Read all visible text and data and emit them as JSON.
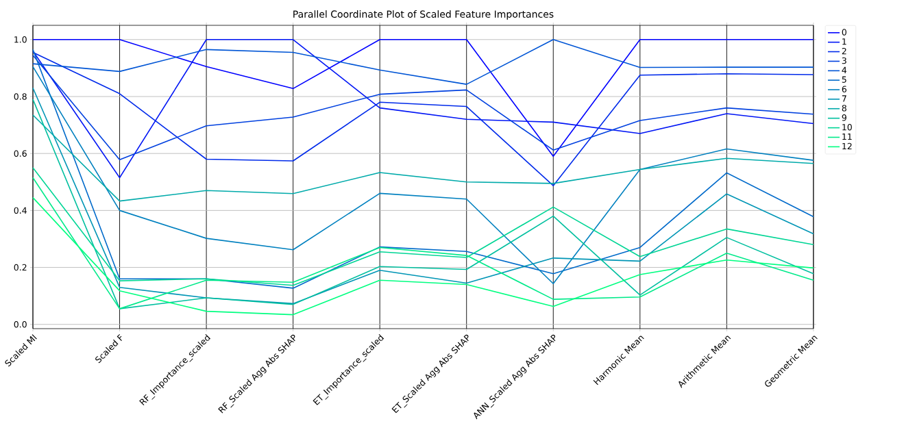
{
  "chart_data": {
    "type": "line",
    "title": "Parallel Coordinate Plot of Scaled Feature Importances",
    "categories": [
      "Scaled MI",
      "Scaled F",
      "RF_Importance_scaled",
      "RF_Scaled Agg Abs SHAP",
      "ET_Importance_scaled",
      "ET_Scaled Agg Abs SHAP",
      "ANN_Scaled Agg Abs SHAP",
      "Harmonic Mean",
      "Arithmetic Mean",
      "Geometric Mean"
    ],
    "ylim": [
      -0.015,
      1.05
    ],
    "yticks": [
      {
        "value": 0,
        "label": "0.0"
      },
      0.2,
      0.4,
      0.6,
      0.8,
      {
        "value": 1,
        "label": "1.0"
      }
    ],
    "grid": true,
    "legend": "top right",
    "line_style": "solid",
    "marker": "none",
    "series": [
      {
        "name": "0",
        "color": "#0000ff",
        "values": [
          1.0,
          1.0,
          0.905,
          0.828,
          1.0,
          1.0,
          0.59,
          1.0,
          1.0,
          1.0
        ]
      },
      {
        "name": "1",
        "color": "#0015f5",
        "values": [
          0.96,
          0.515,
          1.0,
          1.0,
          0.76,
          0.72,
          0.71,
          0.67,
          0.74,
          0.705
        ]
      },
      {
        "name": "2",
        "color": "#002aea",
        "values": [
          0.955,
          0.81,
          0.58,
          0.574,
          0.78,
          0.765,
          0.487,
          0.875,
          0.88,
          0.877
        ]
      },
      {
        "name": "3",
        "color": "#0040df",
        "values": [
          0.945,
          0.578,
          0.697,
          0.728,
          0.808,
          0.823,
          0.612,
          0.716,
          0.76,
          0.738
        ]
      },
      {
        "name": "4",
        "color": "#0055d5",
        "values": [
          0.915,
          0.888,
          0.965,
          0.955,
          0.893,
          0.843,
          1.0,
          0.902,
          0.903,
          0.903
        ]
      },
      {
        "name": "5",
        "color": "#006aca",
        "values": [
          0.965,
          0.16,
          0.16,
          0.127,
          0.272,
          0.256,
          0.178,
          0.27,
          0.532,
          0.378
        ]
      },
      {
        "name": "6",
        "color": "#0080bf",
        "values": [
          0.905,
          0.4,
          0.302,
          0.262,
          0.46,
          0.44,
          0.143,
          0.544,
          0.616,
          0.576
        ]
      },
      {
        "name": "7",
        "color": "#0095b5",
        "values": [
          0.83,
          0.13,
          0.093,
          0.073,
          0.19,
          0.145,
          0.233,
          0.222,
          0.458,
          0.318
        ]
      },
      {
        "name": "8",
        "color": "#00aaaa",
        "values": [
          0.735,
          0.433,
          0.47,
          0.459,
          0.533,
          0.5,
          0.495,
          0.544,
          0.583,
          0.565
        ]
      },
      {
        "name": "9",
        "color": "#00bf9f",
        "values": [
          0.79,
          0.055,
          0.093,
          0.07,
          0.203,
          0.193,
          0.38,
          0.103,
          0.305,
          0.178
        ]
      },
      {
        "name": "10",
        "color": "#00d595",
        "values": [
          0.55,
          0.153,
          0.16,
          0.137,
          0.255,
          0.235,
          0.412,
          0.238,
          0.335,
          0.28
        ]
      },
      {
        "name": "11",
        "color": "#00ea8a",
        "values": [
          0.515,
          0.055,
          0.155,
          0.148,
          0.27,
          0.242,
          0.088,
          0.096,
          0.25,
          0.155
        ]
      },
      {
        "name": "12",
        "color": "#00ff80",
        "values": [
          0.445,
          0.118,
          0.046,
          0.034,
          0.155,
          0.14,
          0.063,
          0.175,
          0.226,
          0.198
        ]
      }
    ]
  }
}
